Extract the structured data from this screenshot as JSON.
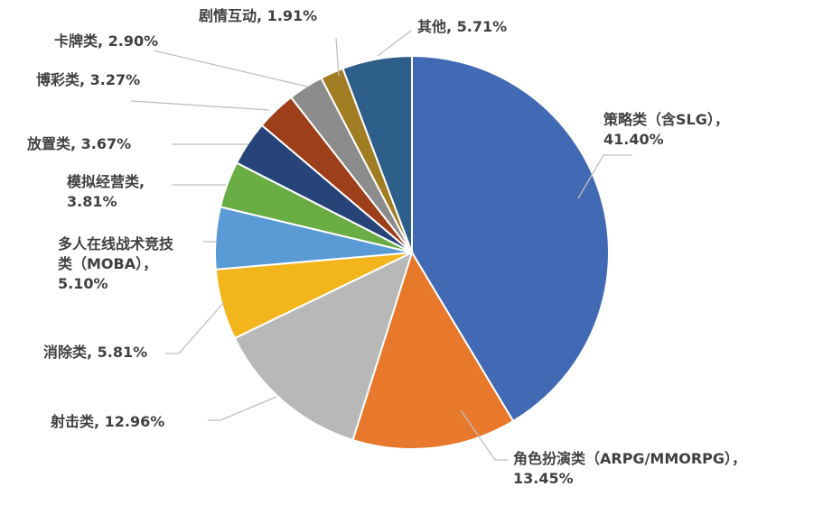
{
  "chart_data": {
    "type": "pie",
    "title": "",
    "start_angle_deg": 0,
    "direction": "clockwise",
    "slices": [
      {
        "name": "策略类（含SLG）",
        "value": 41.4,
        "display": "策略类（含SLG），41.40%",
        "label_lines": [
          "策略类（含SLG），",
          "41.40%"
        ],
        "color": "#4169b4"
      },
      {
        "name": "角色扮演类（ARPG/MMORPG）",
        "value": 13.45,
        "display": "角色扮演类（ARPG/MMORPG），13.45%",
        "label_lines": [
          "角色扮演类（ARPG/MMORPG），",
          "13.45%"
        ],
        "color": "#e8782c"
      },
      {
        "name": "射击类",
        "value": 12.96,
        "display": "射击类, 12.96%",
        "label_lines": [
          "射击类, 12.96%"
        ],
        "color": "#b8b8b8"
      },
      {
        "name": "消除类",
        "value": 5.81,
        "display": "消除类, 5.81%",
        "label_lines": [
          "消除类, 5.81%"
        ],
        "color": "#f2b51c"
      },
      {
        "name": "多人在线战术竞技类（MOBA）",
        "value": 5.1,
        "display": "多人在线战术竞技类（MOBA），5.10%",
        "label_lines": [
          "多人在线战术竞技",
          "类（MOBA），",
          "5.10%"
        ],
        "color": "#5b9bd5"
      },
      {
        "name": "模拟经营类",
        "value": 3.81,
        "display": "模拟经营类, 3.81%",
        "label_lines": [
          "模拟经营类,",
          "3.81%"
        ],
        "color": "#6aad45"
      },
      {
        "name": "放置类",
        "value": 3.67,
        "display": "放置类, 3.67%",
        "label_lines": [
          "放置类, 3.67%"
        ],
        "color": "#264478"
      },
      {
        "name": "博彩类",
        "value": 3.27,
        "display": "博彩类, 3.27%",
        "label_lines": [
          "博彩类, 3.27%"
        ],
        "color": "#9e3f1b"
      },
      {
        "name": "卡牌类",
        "value": 2.9,
        "display": "卡牌类, 2.90%",
        "label_lines": [
          "卡牌类, 2.90%"
        ],
        "color": "#8c8c8c"
      },
      {
        "name": "剧情互动",
        "value": 1.91,
        "display": "剧情互动, 1.91%",
        "label_lines": [
          "剧情互动, 1.91%"
        ],
        "color": "#a07c22"
      },
      {
        "name": "其他",
        "value": 5.71,
        "display": "其他, 5.71%",
        "label_lines": [
          "其他, 5.71%"
        ],
        "color": "#2e5f8a"
      }
    ],
    "legend": "none"
  }
}
